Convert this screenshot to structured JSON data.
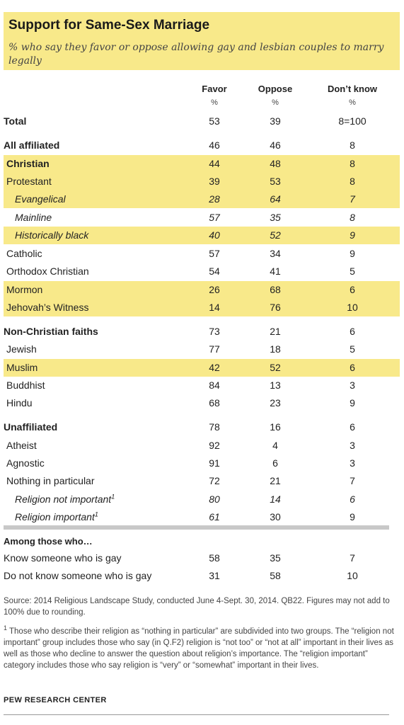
{
  "chart_data": {
    "type": "table",
    "title": "Support for Same-Sex Marriage",
    "subtitle": "% who say they favor or oppose allowing gay and lesbian couples to marry legally",
    "columns": [
      "Favor",
      "Oppose",
      "Don’t know"
    ],
    "units": [
      "%",
      "%",
      "%"
    ],
    "rows": [
      {
        "label": "Total",
        "favor": "53",
        "oppose": "39",
        "dk": "8=100"
      },
      {
        "label": "All affiliated",
        "favor": "46",
        "oppose": "46",
        "dk": "8"
      },
      {
        "label": "Christian",
        "favor": "44",
        "oppose": "48",
        "dk": "8"
      },
      {
        "label": "Protestant",
        "favor": "39",
        "oppose": "53",
        "dk": "8"
      },
      {
        "label": "Evangelical",
        "favor": "28",
        "oppose": "64",
        "dk": "7"
      },
      {
        "label": "Mainline",
        "favor": "57",
        "oppose": "35",
        "dk": "8"
      },
      {
        "label": "Historically black",
        "favor": "40",
        "oppose": "52",
        "dk": "9"
      },
      {
        "label": "Catholic",
        "favor": "57",
        "oppose": "34",
        "dk": "9"
      },
      {
        "label": "Orthodox Christian",
        "favor": "54",
        "oppose": "41",
        "dk": "5"
      },
      {
        "label": "Mormon",
        "favor": "26",
        "oppose": "68",
        "dk": "6"
      },
      {
        "label": "Jehovah’s Witness",
        "favor": "14",
        "oppose": "76",
        "dk": "10"
      },
      {
        "label": "Non-Christian faiths",
        "favor": "73",
        "oppose": "21",
        "dk": "6"
      },
      {
        "label": "Jewish",
        "favor": "77",
        "oppose": "18",
        "dk": "5"
      },
      {
        "label": "Muslim",
        "favor": "42",
        "oppose": "52",
        "dk": "6"
      },
      {
        "label": "Buddhist",
        "favor": "84",
        "oppose": "13",
        "dk": "3"
      },
      {
        "label": "Hindu",
        "favor": "68",
        "oppose": "23",
        "dk": "9"
      },
      {
        "label": "Unaffiliated",
        "favor": "78",
        "oppose": "16",
        "dk": "6"
      },
      {
        "label": "Atheist",
        "favor": "92",
        "oppose": "4",
        "dk": "3"
      },
      {
        "label": "Agnostic",
        "favor": "91",
        "oppose": "6",
        "dk": "3"
      },
      {
        "label": "Nothing in particular",
        "favor": "72",
        "oppose": "21",
        "dk": "7"
      },
      {
        "label": "Religion not important",
        "sup": "1",
        "favor": "80",
        "oppose": "14",
        "dk": "6"
      },
      {
        "label": "Religion important",
        "sup": "1",
        "favor": "61",
        "oppose": "30",
        "dk": "9"
      }
    ],
    "section2_title": "Among those who…",
    "rows2": [
      {
        "label": "Know someone who is gay",
        "favor": "58",
        "oppose": "35",
        "dk": "7"
      },
      {
        "label": "Do not know someone who is gay",
        "favor": "31",
        "oppose": "58",
        "dk": "10"
      }
    ],
    "highlight_color": "#f8e98a"
  },
  "source": "Source: 2014 Religious Landscape Study, conducted June 4-Sept. 30, 2014. QB22. Figures may not add to 100% due to rounding.",
  "footnote_marker": "1",
  "footnote": " Those who describe their religion as “nothing in particular” are subdivided into two groups. The “religion not important” group includes those who say (in Q.F2) religion is “not too” or “not at all” important in their lives as well as those who decline to answer the question about religion’s importance. The “religion important” category includes those who say religion is “very” or “somewhat” important in their lives.",
  "brand": "PEW RESEARCH CENTER"
}
